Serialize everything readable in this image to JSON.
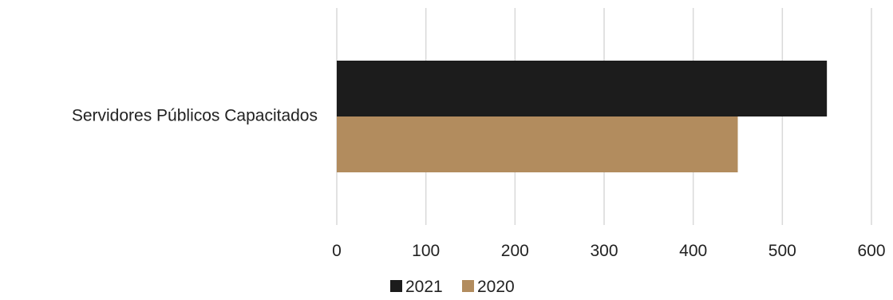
{
  "chart_data": {
    "type": "bar",
    "orientation": "horizontal",
    "categories": [
      "Servidores Públicos Capacitados"
    ],
    "series": [
      {
        "name": "2021",
        "values": [
          550
        ],
        "color": "#1c1c1c"
      },
      {
        "name": "2020",
        "values": [
          450
        ],
        "color": "#b28c5e"
      }
    ],
    "x_ticks": [
      "0",
      "100",
      "200",
      "300",
      "400",
      "500",
      "600"
    ],
    "xlim": [
      0,
      600
    ],
    "grid": true,
    "legend_position": "bottom"
  }
}
